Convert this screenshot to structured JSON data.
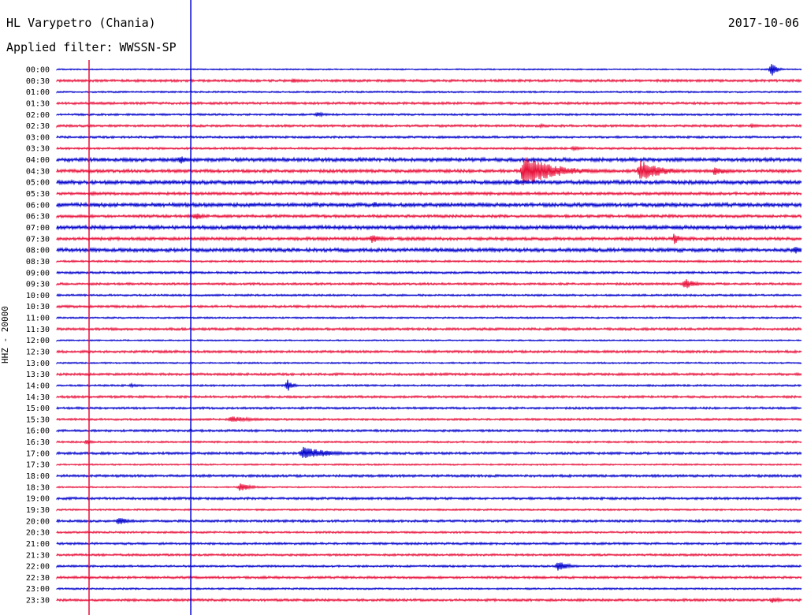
{
  "header": {
    "station": "HL Varypetro (Chania)",
    "filter_label": "Applied filter:",
    "filter_value": "WWSSN-SP",
    "date": "2017-10-06"
  },
  "chart_data": {
    "type": "line",
    "title": "HL Varypetro (Chania)",
    "subtitle": "Applied filter: WWSSN-SP",
    "date": "2017-10-06",
    "ylabel": "HHZ - 20000",
    "row_labels": [
      "00:00",
      "00:30",
      "01:00",
      "01:30",
      "02:00",
      "02:30",
      "03:00",
      "03:30",
      "04:00",
      "04:30",
      "05:00",
      "05:30",
      "06:00",
      "06:30",
      "07:00",
      "07:30",
      "08:00",
      "08:30",
      "09:00",
      "09:30",
      "10:00",
      "10:30",
      "11:00",
      "11:30",
      "12:00",
      "12:30",
      "13:00",
      "13:30",
      "14:00",
      "14:30",
      "15:00",
      "15:30",
      "16:00",
      "16:30",
      "17:00",
      "17:30",
      "18:00",
      "18:30",
      "19:00",
      "19:30",
      "20:00",
      "20:30",
      "21:00",
      "21:30",
      "22:00",
      "22:30",
      "23:00",
      "23:30"
    ],
    "trace_colors": [
      "#0000cc",
      "#e8103a"
    ],
    "marker_colors": [
      "#e8103a",
      "#0000cc"
    ],
    "events": [
      {
        "row": 0,
        "minute": 28.8,
        "amplitude": 9,
        "duration_min": 0.3
      },
      {
        "row": 1,
        "minute": 9.5,
        "amplitude": 3,
        "duration_min": 0.6
      },
      {
        "row": 4,
        "minute": 10.5,
        "amplitude": 3,
        "duration_min": 0.6
      },
      {
        "row": 5,
        "minute": 19.5,
        "amplitude": 3,
        "duration_min": 0.4
      },
      {
        "row": 5,
        "minute": 28.0,
        "amplitude": 2.5,
        "duration_min": 0.6
      },
      {
        "row": 7,
        "minute": 20.8,
        "amplitude": 3,
        "duration_min": 0.6
      },
      {
        "row": 8,
        "minute": 5.0,
        "amplitude": 6,
        "duration_min": 0.4
      },
      {
        "row": 8,
        "minute": 25.0,
        "amplitude": 2.5,
        "duration_min": 0.8
      },
      {
        "row": 9,
        "minute": 18.8,
        "amplitude": 20,
        "duration_min": 1.8
      },
      {
        "row": 9,
        "minute": 23.5,
        "amplitude": 14,
        "duration_min": 1.2
      },
      {
        "row": 9,
        "minute": 26.5,
        "amplitude": 6,
        "duration_min": 0.8
      },
      {
        "row": 10,
        "minute": 18.5,
        "amplitude": 4,
        "duration_min": 0.8
      },
      {
        "row": 11,
        "minute": 1.4,
        "amplitude": 2.5,
        "duration_min": 0.8
      },
      {
        "row": 12,
        "minute": 12.8,
        "amplitude": 4,
        "duration_min": 0.6
      },
      {
        "row": 13,
        "minute": 5.6,
        "amplitude": 6,
        "duration_min": 0.4
      },
      {
        "row": 15,
        "minute": 12.7,
        "amplitude": 6,
        "duration_min": 0.6
      },
      {
        "row": 15,
        "minute": 24.9,
        "amplitude": 9,
        "duration_min": 0.3
      },
      {
        "row": 16,
        "minute": 29.7,
        "amplitude": 5,
        "duration_min": 0.8
      },
      {
        "row": 19,
        "minute": 25.3,
        "amplitude": 7,
        "duration_min": 0.6
      },
      {
        "row": 28,
        "minute": 9.3,
        "amplitude": 8,
        "duration_min": 0.3
      },
      {
        "row": 28,
        "minute": 3.0,
        "amplitude": 2.5,
        "duration_min": 0.5
      },
      {
        "row": 31,
        "minute": 7.0,
        "amplitude": 4,
        "duration_min": 1.5
      },
      {
        "row": 33,
        "minute": 1.2,
        "amplitude": 3,
        "duration_min": 0.4
      },
      {
        "row": 34,
        "minute": 9.9,
        "amplitude": 9,
        "duration_min": 1.4
      },
      {
        "row": 37,
        "minute": 7.4,
        "amplitude": 6,
        "duration_min": 0.6
      },
      {
        "row": 40,
        "minute": 2.5,
        "amplitude": 5,
        "duration_min": 0.6
      },
      {
        "row": 44,
        "minute": 20.2,
        "amplitude": 7,
        "duration_min": 0.6
      },
      {
        "row": 47,
        "minute": 28.8,
        "amplitude": 4,
        "duration_min": 0.6
      }
    ],
    "markers": [
      {
        "minute": 1.3
      },
      {
        "minute": 5.4
      }
    ]
  }
}
